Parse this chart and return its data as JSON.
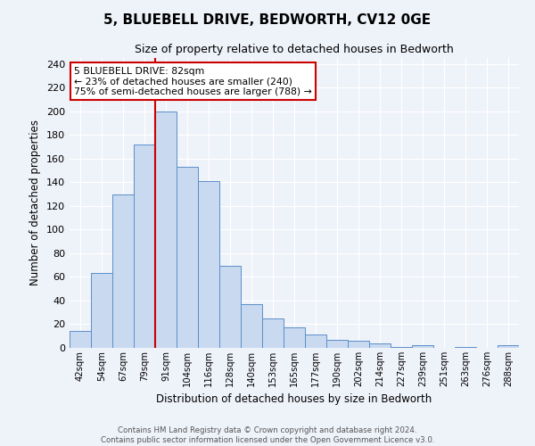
{
  "title": "5, BLUEBELL DRIVE, BEDWORTH, CV12 0GE",
  "subtitle": "Size of property relative to detached houses in Bedworth",
  "xlabel": "Distribution of detached houses by size in Bedworth",
  "ylabel": "Number of detached properties",
  "bin_labels": [
    "42sqm",
    "54sqm",
    "67sqm",
    "79sqm",
    "91sqm",
    "104sqm",
    "116sqm",
    "128sqm",
    "140sqm",
    "153sqm",
    "165sqm",
    "177sqm",
    "190sqm",
    "202sqm",
    "214sqm",
    "227sqm",
    "239sqm",
    "251sqm",
    "263sqm",
    "276sqm",
    "288sqm"
  ],
  "bar_heights": [
    14,
    63,
    130,
    172,
    200,
    153,
    141,
    69,
    37,
    25,
    17,
    11,
    7,
    6,
    4,
    1,
    2,
    0,
    1,
    0,
    2
  ],
  "bar_color": "#c9d9f0",
  "bar_edge_color": "#5b8fc9",
  "ylim": [
    0,
    245
  ],
  "yticks": [
    0,
    20,
    40,
    60,
    80,
    100,
    120,
    140,
    160,
    180,
    200,
    220,
    240
  ],
  "property_line_bin_index": 3,
  "annotation_title": "5 BLUEBELL DRIVE: 82sqm",
  "annotation_line1": "← 23% of detached houses are smaller (240)",
  "annotation_line2": "75% of semi-detached houses are larger (788) →",
  "footer_line1": "Contains HM Land Registry data © Crown copyright and database right 2024.",
  "footer_line2": "Contains public sector information licensed under the Open Government Licence v3.0.",
  "background_color": "#eef2f9",
  "grid_color": "#ffffff",
  "annotation_box_color": "#ffffff",
  "annotation_box_edge_color": "#cc0000",
  "red_line_color": "#cc0000"
}
